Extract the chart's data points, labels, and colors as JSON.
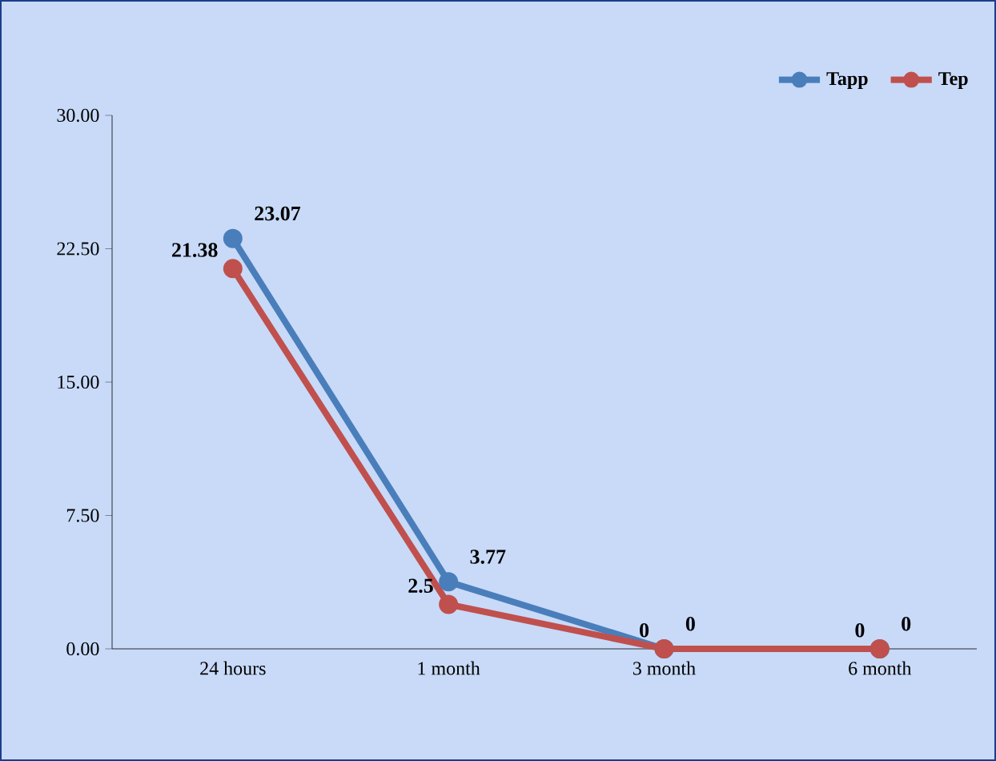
{
  "chart_data": {
    "type": "line",
    "categories": [
      "24 hours",
      "1 month",
      "3 month",
      "6 month"
    ],
    "series": [
      {
        "name": "Tapp",
        "color": "#4a7ebb",
        "values": [
          23.07,
          3.77,
          0,
          0
        ]
      },
      {
        "name": "Tep",
        "color": "#c0504d",
        "values": [
          21.38,
          2.5,
          0,
          0
        ]
      }
    ],
    "ylim": [
      0,
      30
    ],
    "yticks": [
      {
        "value": 0,
        "label": "0.00"
      },
      {
        "value": 7.5,
        "label": "7.50"
      },
      {
        "value": 15,
        "label": "15.00"
      },
      {
        "value": 22.5,
        "label": "22.50"
      },
      {
        "value": 30,
        "label": "30.00"
      }
    ],
    "data_labels": true,
    "legend": "top right",
    "marker": "circle",
    "grid": false
  }
}
